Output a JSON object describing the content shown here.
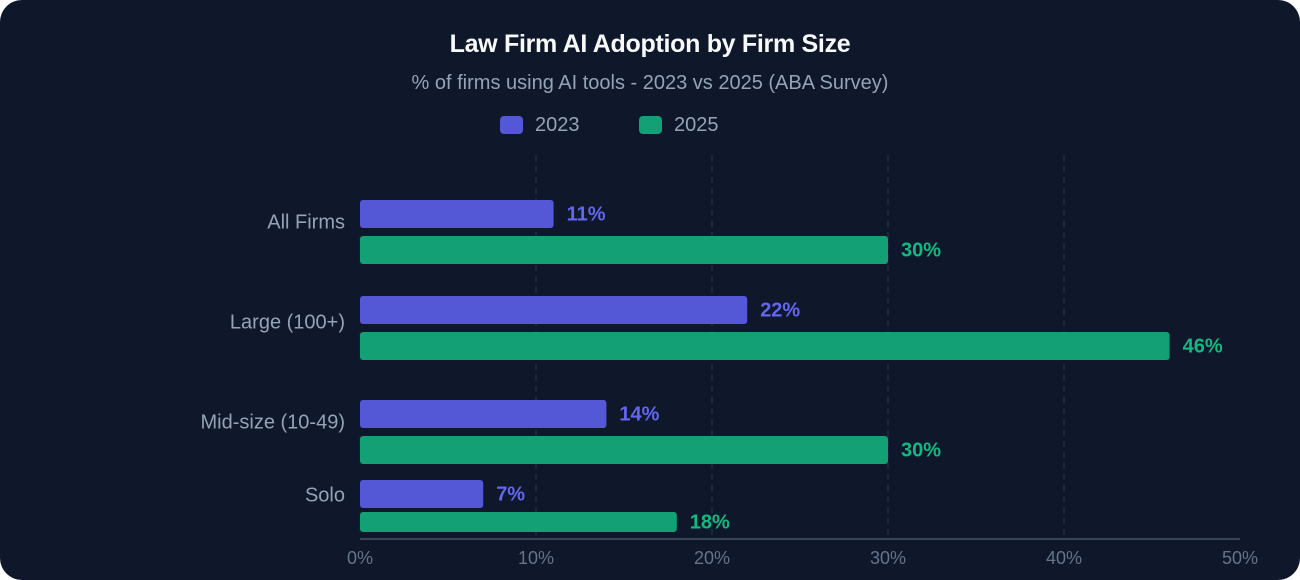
{
  "colors": {
    "series_2023": "#5558d6",
    "series_2025": "#13a075",
    "label_2023": "#6366f1",
    "label_2025": "#10b981",
    "background": "#0f172a",
    "grid": "#2a3447",
    "axis_text": "#64748b",
    "category_text": "#94a3b8"
  },
  "chart_data": {
    "type": "bar",
    "orientation": "horizontal",
    "title": "Law Firm AI Adoption by Firm Size",
    "subtitle": "% of firms using AI tools - 2023 vs 2025 (ABA Survey)",
    "categories": [
      "All Firms",
      "Large (100+)",
      "Mid-size (10-49)",
      "Solo"
    ],
    "series": [
      {
        "name": "2023",
        "values": [
          11,
          22,
          14,
          7
        ],
        "labels": [
          "11%",
          "22%",
          "14%",
          "7%"
        ]
      },
      {
        "name": "2025",
        "values": [
          30,
          46,
          30,
          18
        ],
        "labels": [
          "30%",
          "46%",
          "30%",
          "18%"
        ]
      }
    ],
    "xlim": [
      0,
      50
    ],
    "xticks": [
      0,
      10,
      20,
      30,
      40,
      50
    ],
    "xtick_labels": [
      "0%",
      "10%",
      "20%",
      "30%",
      "40%",
      "50%"
    ],
    "grid": true,
    "legend_position": "top-center"
  }
}
